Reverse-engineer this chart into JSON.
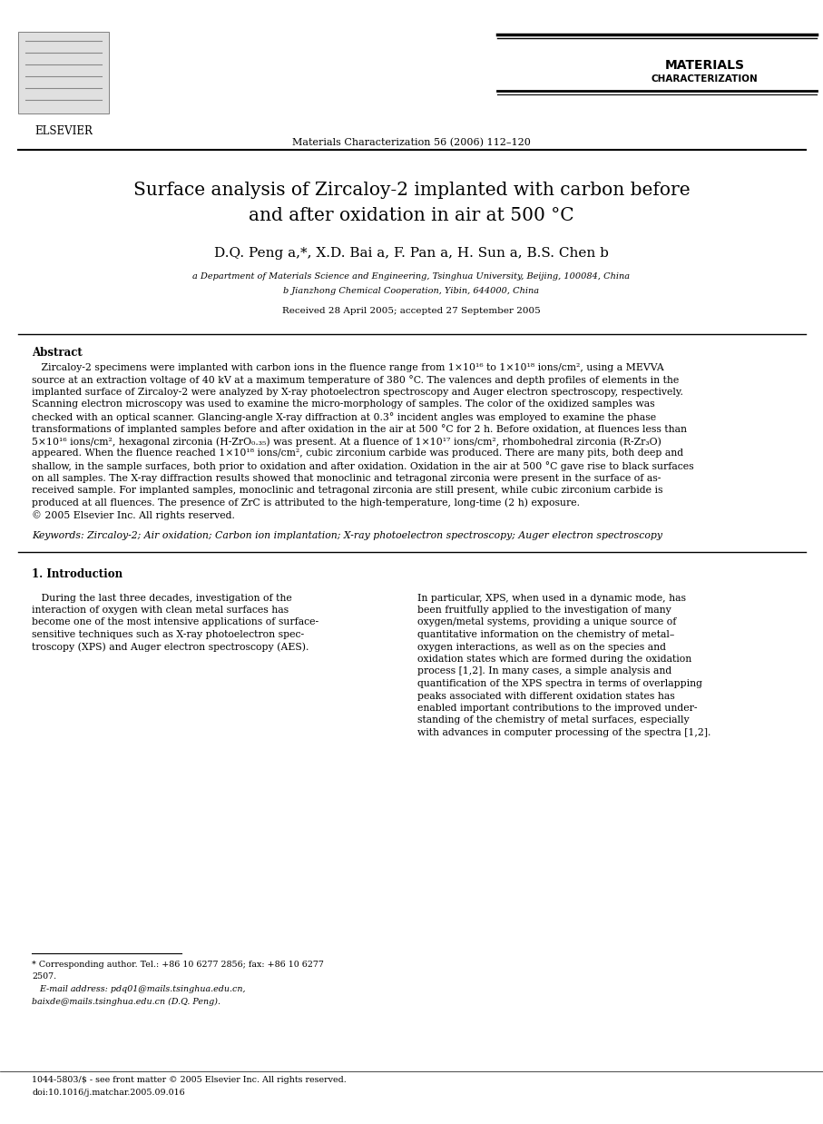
{
  "page_width": 9.07,
  "page_height": 12.38,
  "dpi": 100,
  "bg_color": "#ffffff",
  "journal_name_line1": "MATERIALS",
  "journal_name_line2": "CHARACTERIZATION",
  "journal_ref": "Materials Characterization 56 (2006) 112–120",
  "elsevier_text": "ELSEVIER",
  "title_line1": "Surface analysis of Zircaloy-2 implanted with carbon before",
  "title_line2": "and after oxidation in air at 500 °C",
  "authors": "D.Q. Peng a,*, X.D. Bai a, F. Pan a, H. Sun a, B.S. Chen b",
  "affil_a": "a Department of Materials Science and Engineering, Tsinghua University, Beijing, 100084, China",
  "affil_b": "b Jianzhong Chemical Cooperation, Yibin, 644000, China",
  "received": "Received 28 April 2005; accepted 27 September 2005",
  "abstract_title": "Abstract",
  "abstract_lines": [
    "   Zircaloy-2 specimens were implanted with carbon ions in the fluence range from 1×10¹⁶ to 1×10¹⁸ ions/cm², using a MEVVA",
    "source at an extraction voltage of 40 kV at a maximum temperature of 380 °C. The valences and depth profiles of elements in the",
    "implanted surface of Zircaloy-2 were analyzed by X-ray photoelectron spectroscopy and Auger electron spectroscopy, respectively.",
    "Scanning electron microscopy was used to examine the micro-morphology of samples. The color of the oxidized samples was",
    "checked with an optical scanner. Glancing-angle X-ray diffraction at 0.3° incident angles was employed to examine the phase",
    "transformations of implanted samples before and after oxidation in the air at 500 °C for 2 h. Before oxidation, at fluences less than",
    "5×10¹⁶ ions/cm², hexagonal zirconia (H-ZrO₀.₃₅) was present. At a fluence of 1×10¹⁷ ions/cm², rhombohedral zirconia (R-Zr₃O)",
    "appeared. When the fluence reached 1×10¹⁸ ions/cm², cubic zirconium carbide was produced. There are many pits, both deep and",
    "shallow, in the sample surfaces, both prior to oxidation and after oxidation. Oxidation in the air at 500 °C gave rise to black surfaces",
    "on all samples. The X-ray diffraction results showed that monoclinic and tetragonal zirconia were present in the surface of as-",
    "received sample. For implanted samples, monoclinic and tetragonal zirconia are still present, while cubic zirconium carbide is",
    "produced at all fluences. The presence of ZrC is attributed to the high-temperature, long-time (2 h) exposure.",
    "© 2005 Elsevier Inc. All rights reserved."
  ],
  "keywords_line": "Keywords: Zircaloy-2; Air oxidation; Carbon ion implantation; X-ray photoelectron spectroscopy; Auger electron spectroscopy",
  "section1_title": "1. Introduction",
  "col1_lines": [
    "   During the last three decades, investigation of the",
    "interaction of oxygen with clean metal surfaces has",
    "become one of the most intensive applications of surface-",
    "sensitive techniques such as X-ray photoelectron spec-",
    "troscopy (XPS) and Auger electron spectroscopy (AES)."
  ],
  "col2_lines": [
    "In particular, XPS, when used in a dynamic mode, has",
    "been fruitfully applied to the investigation of many",
    "oxygen/metal systems, providing a unique source of",
    "quantitative information on the chemistry of metal–",
    "oxygen interactions, as well as on the species and",
    "oxidation states which are formed during the oxidation",
    "process [1,2]. In many cases, a simple analysis and",
    "quantification of the XPS spectra in terms of overlapping",
    "peaks associated with different oxidation states has",
    "enabled important contributions to the improved under-",
    "standing of the chemistry of metal surfaces, especially",
    "with advances in computer processing of the spectra [1,2]."
  ],
  "footnote1": "* Corresponding author. Tel.: +86 10 6277 2856; fax: +86 10 6277",
  "footnote1b": "2507.",
  "footnote2": "   E-mail address: pdq01@mails.tsinghua.edu.cn,",
  "footnote3": "baixde@mails.tsinghua.edu.cn (D.Q. Peng).",
  "footer_left": "1044-5803/$ - see front matter © 2005 Elsevier Inc. All rights reserved.",
  "footer_doi": "doi:10.1016/j.matchar.2005.09.016"
}
